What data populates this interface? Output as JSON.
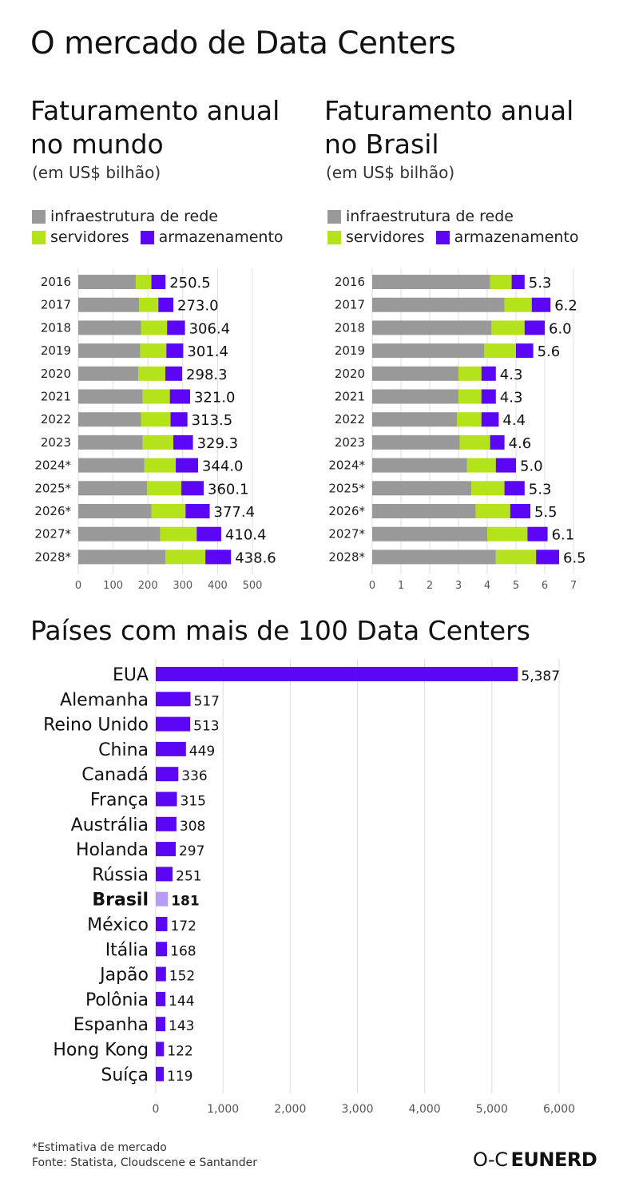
{
  "page": {
    "title": "O mercado de Data Centers",
    "footnote": "*Estimativa de mercado",
    "source": "Fonte: Statista, Cloudscene e Santander",
    "brand": "EUNERD",
    "brand_glyph": "O-C"
  },
  "colors": {
    "infra": "#999999",
    "servers": "#b4e31b",
    "storage": "#5b06f5",
    "highlight": "#b49cf7",
    "grid": "#dddddd"
  },
  "legend": {
    "infra": "infraestrutura de rede",
    "servers": "servidores",
    "storage": "armazenamento"
  },
  "chart_data": [
    {
      "id": "world",
      "type": "bar",
      "stacked": true,
      "orientation": "horizontal",
      "title": "Faturamento anual no mundo",
      "title_lines": [
        "Faturamento anual",
        "no mundo"
      ],
      "unit": "(em US$ bilhão)",
      "categories": [
        "2016",
        "2017",
        "2018",
        "2019",
        "2020",
        "2021",
        "2022",
        "2023",
        "2024*",
        "2025*",
        "2026*",
        "2027*",
        "2028*"
      ],
      "series": [
        {
          "name": "infraestrutura de rede",
          "values": [
            165,
            175,
            180,
            178,
            172,
            185,
            180,
            185,
            190,
            198,
            210,
            235,
            250
          ]
        },
        {
          "name": "servidores",
          "values": [
            45,
            55,
            75,
            75,
            78,
            78,
            85,
            88,
            90,
            98,
            98,
            105,
            115
          ]
        },
        {
          "name": "armazenamento",
          "values": [
            40.5,
            43,
            51.4,
            48.4,
            48.3,
            58,
            48.5,
            56.3,
            64,
            64.1,
            69.4,
            70.4,
            73.6
          ]
        }
      ],
      "totals": [
        "250.5",
        "273.0",
        "306.4",
        "301.4",
        "298.3",
        "321.0",
        "313.5",
        "329.3",
        "344.0",
        "360.1",
        "377.4",
        "410.4",
        "438.6"
      ],
      "xlim": [
        0,
        500
      ],
      "xticks": [
        "0",
        "100",
        "200",
        "300",
        "400",
        "500"
      ],
      "tick_values": [
        0,
        100,
        200,
        300,
        400,
        500
      ]
    },
    {
      "id": "brazil",
      "type": "bar",
      "stacked": true,
      "orientation": "horizontal",
      "title": "Faturamento anual no Brasil",
      "title_lines": [
        "Faturamento anual",
        "no Brasil"
      ],
      "unit": "(em US$ bilhão)",
      "categories": [
        "2016",
        "2017",
        "2018",
        "2019",
        "2020",
        "2021",
        "2022",
        "2023",
        "2024*",
        "2025*",
        "2026*",
        "2027*",
        "2028*"
      ],
      "series": [
        {
          "name": "infraestrutura de rede",
          "values": [
            4.1,
            4.6,
            4.15,
            3.9,
            3.0,
            3.0,
            2.95,
            3.05,
            3.3,
            3.45,
            3.6,
            4.0,
            4.3
          ]
        },
        {
          "name": "servidores",
          "values": [
            0.75,
            0.95,
            1.15,
            1.1,
            0.8,
            0.8,
            0.85,
            1.05,
            1.0,
            1.15,
            1.2,
            1.4,
            1.4
          ]
        },
        {
          "name": "armazenamento",
          "values": [
            0.45,
            0.65,
            0.7,
            0.6,
            0.5,
            0.5,
            0.6,
            0.5,
            0.7,
            0.7,
            0.7,
            0.7,
            0.8
          ]
        }
      ],
      "totals": [
        "5.3",
        "6.2",
        "6.0",
        "5.6",
        "4.3",
        "4.3",
        "4.4",
        "4.6",
        "5.0",
        "5.3",
        "5.5",
        "6.1",
        "6.5"
      ],
      "xlim": [
        0,
        7
      ],
      "xticks": [
        "0",
        "1",
        "2",
        "3",
        "4",
        "5",
        "6",
        "7"
      ],
      "tick_values": [
        0,
        1,
        2,
        3,
        4,
        5,
        6,
        7
      ]
    },
    {
      "id": "countries",
      "type": "bar",
      "orientation": "horizontal",
      "title": "Países com mais de 100 Data Centers",
      "categories": [
        "EUA",
        "Alemanha",
        "Reino Unido",
        "China",
        "Canadá",
        "França",
        "Austrália",
        "Holanda",
        "Rússia",
        "Brasil",
        "México",
        "Itália",
        "Japão",
        "Polônia",
        "Espanha",
        "Hong Kong",
        "Suíça"
      ],
      "values": [
        5387,
        517,
        513,
        449,
        336,
        315,
        308,
        297,
        251,
        181,
        172,
        168,
        152,
        144,
        143,
        122,
        119
      ],
      "value_labels": [
        "5,387",
        "517",
        "513",
        "449",
        "336",
        "315",
        "308",
        "297",
        "251",
        "181",
        "172",
        "168",
        "152",
        "144",
        "143",
        "122",
        "119"
      ],
      "highlight": "Brasil",
      "xlim": [
        0,
        6000
      ],
      "xticks": [
        "0",
        "1,000",
        "2,000",
        "3,000",
        "4,000",
        "5,000",
        "6,000"
      ],
      "tick_values": [
        0,
        1000,
        2000,
        3000,
        4000,
        5000,
        6000
      ]
    }
  ]
}
